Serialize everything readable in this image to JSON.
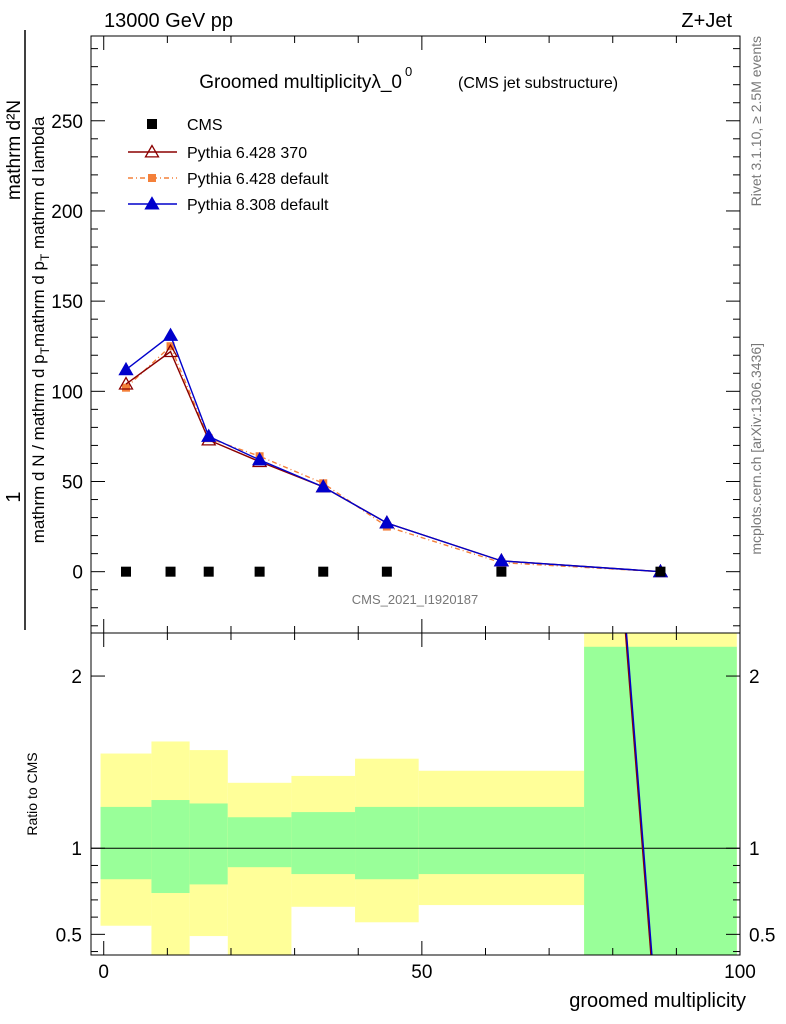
{
  "header": {
    "left": "13000 GeV pp",
    "right": "Z+Jet"
  },
  "side": {
    "rivet": "Rivet 3.1.10, ≥ 2.5M events",
    "mcplots": "mcplots.cern.ch [arXiv:1306.3436]"
  },
  "colors": {
    "cms": "#000000",
    "p6_370": "#8b0000",
    "p6_default": "#f4803a",
    "p8": "#0000cc",
    "band_inner": "#99ff99",
    "band_outer": "#ffff99"
  },
  "chart_data": [
    {
      "type": "line",
      "title": "Groomed multiplicityλ_0",
      "title_sup": "0",
      "subtitle": "(CMS jet substructure)",
      "ylabel_top": "1",
      "ylabel_bottom": "mathrm d N / mathrm d p_T mathrm d p_T mathrm d lambda",
      "ylabel_num": "mathrm d²N",
      "watermark": "CMS_2021_I1920187",
      "ylim": [
        -34,
        297
      ],
      "yticks": [
        "0",
        "50",
        "100",
        "150",
        "200",
        "250"
      ],
      "yticks_values": [
        0,
        50,
        100,
        150,
        200,
        250
      ],
      "x": [
        3.5,
        10.5,
        16.5,
        24.5,
        34.5,
        44.5,
        62.5,
        87.5
      ],
      "series": [
        {
          "name": "CMS",
          "marker": "square",
          "values": [
            0,
            0,
            0,
            0,
            0,
            0,
            0,
            0
          ]
        },
        {
          "name": "Pythia 6.428 370",
          "marker": "triangle-open",
          "values": [
            104,
            122,
            73,
            61,
            47,
            27,
            6,
            0
          ]
        },
        {
          "name": "Pythia 6.428 default",
          "marker": "square-small",
          "dashed": true,
          "values": [
            102,
            125,
            74,
            64,
            49,
            25,
            5,
            0
          ]
        },
        {
          "name": "Pythia 8.308 default",
          "marker": "triangle",
          "values": [
            112,
            131,
            75,
            62,
            47,
            27,
            6,
            0
          ]
        }
      ]
    },
    {
      "type": "line",
      "ylabel": "Ratio to CMS",
      "xlabel": "groomed multiplicity",
      "xlim": [
        -2,
        100
      ],
      "ylim": [
        0.38,
        2.25
      ],
      "xticks": [
        "0",
        "50",
        "100"
      ],
      "xticks_values": [
        0,
        50,
        100
      ],
      "yticks": [
        "0.5",
        "1",
        "2"
      ],
      "yticks_values": [
        0.5,
        1,
        2
      ],
      "bins": [
        {
          "lo": -0.5,
          "hi": 7.5,
          "inner": [
            0.82,
            1.24
          ],
          "outer": [
            0.55,
            1.55
          ]
        },
        {
          "lo": 7.5,
          "hi": 13.5,
          "inner": [
            0.74,
            1.28
          ],
          "outer": [
            0.38,
            1.62
          ]
        },
        {
          "lo": 13.5,
          "hi": 19.5,
          "inner": [
            0.79,
            1.26
          ],
          "outer": [
            0.49,
            1.57
          ]
        },
        {
          "lo": 19.5,
          "hi": 29.5,
          "inner": [
            0.89,
            1.18
          ],
          "outer": [
            0.38,
            1.38
          ]
        },
        {
          "lo": 29.5,
          "hi": 39.5,
          "inner": [
            0.85,
            1.21
          ],
          "outer": [
            0.66,
            1.42
          ]
        },
        {
          "lo": 39.5,
          "hi": 49.5,
          "inner": [
            0.82,
            1.24
          ],
          "outer": [
            0.57,
            1.52
          ]
        },
        {
          "lo": 49.5,
          "hi": 75.5,
          "inner": [
            0.85,
            1.24
          ],
          "outer": [
            0.67,
            1.45
          ]
        },
        {
          "lo": 75.5,
          "hi": 99.5,
          "inner": [
            0.38,
            2.17
          ],
          "outer": [
            0.38,
            2.25
          ]
        }
      ],
      "ratio_line": {
        "x": [
          82,
          86
        ],
        "y": [
          2.25,
          0.38
        ]
      }
    }
  ]
}
